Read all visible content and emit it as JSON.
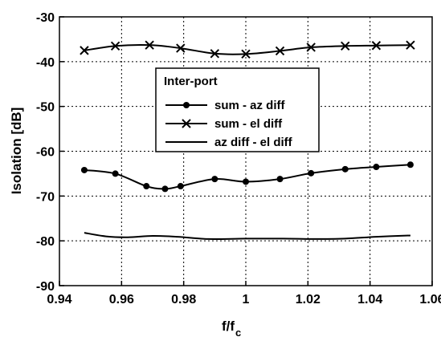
{
  "chart_data": {
    "type": "line",
    "title": "",
    "xlabel": "f/f",
    "xlabel_sub": "c",
    "ylabel": "Isolation [dB]",
    "xlim": [
      0.94,
      1.06
    ],
    "ylim": [
      -90,
      -30
    ],
    "xticks": [
      "0.94",
      "0.96",
      "0.98",
      "1",
      "1.02",
      "1.04",
      "1.06"
    ],
    "xtick_values": [
      0.94,
      0.96,
      0.98,
      1.0,
      1.02,
      1.04,
      1.06
    ],
    "yticks": [
      "-30",
      "-40",
      "-50",
      "-60",
      "-70",
      "-80",
      "-90"
    ],
    "ytick_values": [
      -30,
      -40,
      -50,
      -60,
      -70,
      -80,
      -90
    ],
    "grid": true,
    "legend": {
      "title": "Inter-port",
      "placement": "upper-center",
      "entries": [
        "sum - az diff",
        "sum - el diff",
        "az diff - el diff"
      ]
    },
    "series": [
      {
        "name": "sum - az diff",
        "marker": "circle",
        "x": [
          0.948,
          0.958,
          0.968,
          0.974,
          0.979,
          0.99,
          1.0,
          1.011,
          1.021,
          1.032,
          1.042,
          1.053
        ],
        "y": [
          -64.2,
          -65.0,
          -67.8,
          -68.4,
          -67.8,
          -66.2,
          -66.8,
          -66.2,
          -64.9,
          -64.0,
          -63.5,
          -63.0
        ]
      },
      {
        "name": "sum - el diff",
        "marker": "x",
        "x": [
          0.948,
          0.958,
          0.969,
          0.979,
          0.99,
          1.0,
          1.011,
          1.021,
          1.032,
          1.042,
          1.053
        ],
        "y": [
          -37.5,
          -36.5,
          -36.3,
          -37.0,
          -38.2,
          -38.3,
          -37.6,
          -36.8,
          -36.5,
          -36.4,
          -36.3
        ]
      },
      {
        "name": "az diff - el diff",
        "marker": "none",
        "x": [
          0.948,
          0.955,
          0.962,
          0.97,
          0.978,
          0.988,
          1.0,
          1.012,
          1.022,
          1.032,
          1.042,
          1.053
        ],
        "y": [
          -78.2,
          -79.0,
          -79.2,
          -78.9,
          -79.1,
          -79.6,
          -79.5,
          -79.5,
          -79.6,
          -79.5,
          -79.1,
          -78.8
        ]
      }
    ]
  }
}
